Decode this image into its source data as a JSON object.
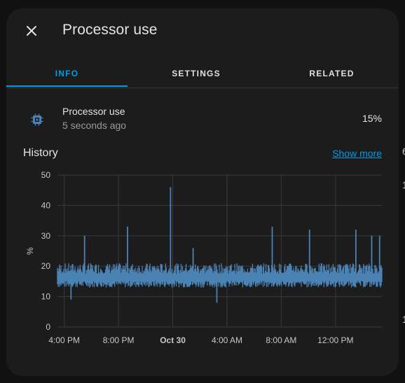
{
  "dialog": {
    "title": "Processor use",
    "close_label": "close-icon"
  },
  "tabs": [
    {
      "label": "INFO",
      "active": true
    },
    {
      "label": "SETTINGS",
      "active": false
    },
    {
      "label": "RELATED",
      "active": false
    }
  ],
  "entity": {
    "name": "Processor use",
    "last_changed": "5 seconds ago",
    "state": "15%",
    "icon": "cpu-icon"
  },
  "history": {
    "title": "History",
    "show_more": "Show more"
  },
  "colors": {
    "accent": "#039be5",
    "series": "#4a82b4",
    "background": "#1c1c1c",
    "text": "#e3e3e3"
  },
  "background_fragments": [
    "6",
    "1",
    "1"
  ],
  "chart_data": {
    "type": "line",
    "title": "",
    "xlabel": "",
    "ylabel": "%",
    "ylim": [
      0,
      50
    ],
    "yticks": [
      "0",
      "10",
      "20",
      "30",
      "40",
      "50"
    ],
    "xticks": [
      "4:00 PM",
      "8:00 PM",
      "Oct 30",
      "4:00 AM",
      "8:00 AM",
      "12:00 PM"
    ],
    "x_range": [
      "Oct 29 3:30 PM",
      "Oct 30 3:25 PM"
    ],
    "grid": true,
    "series": [
      {
        "name": "",
        "baseline_range": [
          13,
          20
        ],
        "notable_points": [
          {
            "x": "Oct 29 4:30 PM",
            "y": 9
          },
          {
            "x": "Oct 29 5:30 PM",
            "y": 30
          },
          {
            "x": "Oct 29 8:40 PM",
            "y": 33
          },
          {
            "x": "Oct 29 11:50 PM",
            "y": 46
          },
          {
            "x": "Oct 30 1:30 AM",
            "y": 26
          },
          {
            "x": "Oct 30 3:15 AM",
            "y": 8
          },
          {
            "x": "Oct 30 7:20 AM",
            "y": 33
          },
          {
            "x": "Oct 30 10:05 AM",
            "y": 32
          },
          {
            "x": "Oct 30 1:30 PM",
            "y": 32
          },
          {
            "x": "Oct 30 2:40 PM",
            "y": 30
          },
          {
            "x": "Oct 30 3:15 PM",
            "y": 30
          }
        ]
      }
    ]
  }
}
